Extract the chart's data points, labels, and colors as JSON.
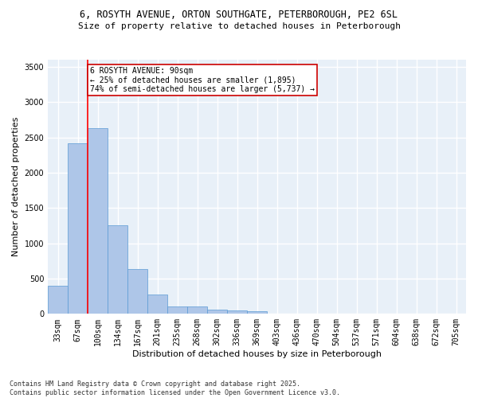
{
  "title_line1": "6, ROSYTH AVENUE, ORTON SOUTHGATE, PETERBOROUGH, PE2 6SL",
  "title_line2": "Size of property relative to detached houses in Peterborough",
  "xlabel": "Distribution of detached houses by size in Peterborough",
  "ylabel": "Number of detached properties",
  "categories": [
    "33sqm",
    "67sqm",
    "100sqm",
    "134sqm",
    "167sqm",
    "201sqm",
    "235sqm",
    "268sqm",
    "302sqm",
    "336sqm",
    "369sqm",
    "403sqm",
    "436sqm",
    "470sqm",
    "504sqm",
    "537sqm",
    "571sqm",
    "604sqm",
    "638sqm",
    "672sqm",
    "705sqm"
  ],
  "values": [
    400,
    2420,
    2630,
    1250,
    640,
    270,
    110,
    110,
    55,
    50,
    40,
    5,
    0,
    0,
    0,
    0,
    0,
    0,
    0,
    0,
    0
  ],
  "bar_color": "#aec6e8",
  "bar_edge_color": "#5a9ad4",
  "bar_width": 1.0,
  "red_line_x": 1.5,
  "annotation_text": "6 ROSYTH AVENUE: 90sqm\n← 25% of detached houses are smaller (1,895)\n74% of semi-detached houses are larger (5,737) →",
  "annotation_box_color": "#ffffff",
  "annotation_box_edge_color": "#cc0000",
  "ylim": [
    0,
    3600
  ],
  "yticks": [
    0,
    500,
    1000,
    1500,
    2000,
    2500,
    3000,
    3500
  ],
  "background_color": "#e8f0f8",
  "grid_color": "#ffffff",
  "footer_line1": "Contains HM Land Registry data © Crown copyright and database right 2025.",
  "footer_line2": "Contains public sector information licensed under the Open Government Licence v3.0.",
  "title_fontsize": 8.5,
  "subtitle_fontsize": 8,
  "axis_label_fontsize": 8,
  "tick_fontsize": 7,
  "footer_fontsize": 6,
  "annotation_fontsize": 7
}
